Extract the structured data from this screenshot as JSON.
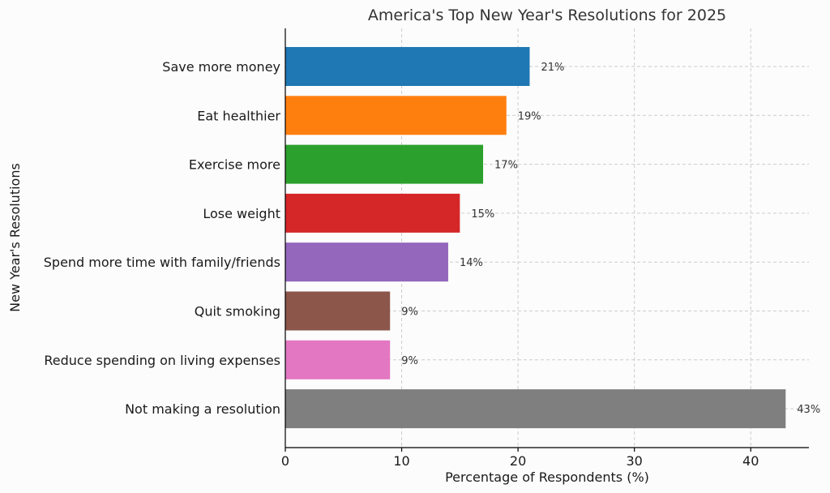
{
  "chart_data": {
    "type": "bar",
    "orientation": "horizontal",
    "title": "America's Top New Year's Resolutions for 2025",
    "xlabel": "Percentage of Respondents (%)",
    "ylabel": "New Year's Resolutions",
    "xlim": [
      0,
      45
    ],
    "xticks": [
      0,
      10,
      20,
      30,
      40
    ],
    "grid": true,
    "categories": [
      "Save more money",
      "Eat healthier",
      "Exercise more",
      "Lose weight",
      "Spend more time with family/friends",
      "Quit smoking",
      "Reduce spending on living expenses",
      "Not making a resolution"
    ],
    "values": [
      21,
      19,
      17,
      15,
      14,
      9,
      9,
      43
    ],
    "value_labels": [
      "21%",
      "19%",
      "17%",
      "15%",
      "14%",
      "9%",
      "9%",
      "43%"
    ],
    "colors": [
      "#1f77b4",
      "#ff7f0e",
      "#2ca02c",
      "#d62728",
      "#9467bd",
      "#8c564b",
      "#e377c2",
      "#7f7f7f"
    ]
  }
}
